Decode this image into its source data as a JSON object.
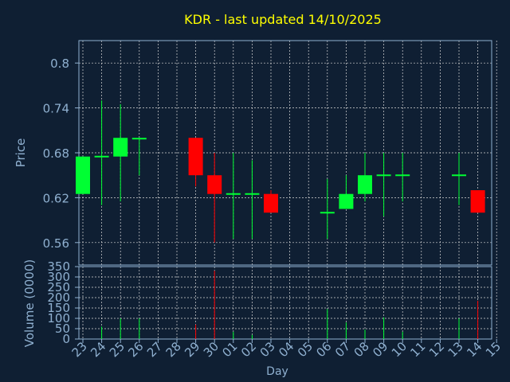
{
  "colors": {
    "background": "#0f1f33",
    "axis": "#8fb0d0",
    "title": "#ffff00",
    "grid": "#d8d8d8",
    "up": "#00ff33",
    "down": "#ff0000"
  },
  "chart_data": {
    "type": "candlestick",
    "title": "KDR - last updated 14/10/2025",
    "xlabel": "Day",
    "days": [
      "23",
      "24",
      "25",
      "26",
      "27",
      "28",
      "29",
      "30",
      "01",
      "02",
      "03",
      "04",
      "05",
      "06",
      "07",
      "08",
      "09",
      "10",
      "11",
      "12",
      "13",
      "14",
      "15"
    ],
    "price": {
      "ylabel": "Price",
      "ylim": [
        0.53,
        0.83
      ],
      "ticks": [
        "0.56",
        "0.62",
        "0.68",
        "0.74",
        "0.8"
      ],
      "candles": [
        {
          "day": "23",
          "open": 0.625,
          "close": 0.675,
          "high": 0.675,
          "low": 0.625
        },
        {
          "day": "24",
          "open": 0.674,
          "close": 0.676,
          "high": 0.75,
          "low": 0.61
        },
        {
          "day": "25",
          "open": 0.675,
          "close": 0.7,
          "high": 0.745,
          "low": 0.615
        },
        {
          "day": "26",
          "open": 0.699,
          "close": 0.7,
          "high": 0.7,
          "low": 0.65
        },
        {
          "day": "29",
          "open": 0.7,
          "close": 0.65,
          "high": 0.7,
          "low": 0.635
        },
        {
          "day": "30",
          "open": 0.65,
          "close": 0.625,
          "high": 0.68,
          "low": 0.56
        },
        {
          "day": "01",
          "open": 0.624,
          "close": 0.626,
          "high": 0.68,
          "low": 0.565
        },
        {
          "day": "02",
          "open": 0.624,
          "close": 0.626,
          "high": 0.67,
          "low": 0.565
        },
        {
          "day": "03",
          "open": 0.625,
          "close": 0.6,
          "high": 0.63,
          "low": 0.6
        },
        {
          "day": "06",
          "open": 0.599,
          "close": 0.601,
          "high": 0.645,
          "low": 0.565
        },
        {
          "day": "07",
          "open": 0.605,
          "close": 0.625,
          "high": 0.65,
          "low": 0.605
        },
        {
          "day": "08",
          "open": 0.625,
          "close": 0.65,
          "high": 0.68,
          "low": 0.615
        },
        {
          "day": "09",
          "open": 0.649,
          "close": 0.651,
          "high": 0.68,
          "low": 0.595
        },
        {
          "day": "10",
          "open": 0.649,
          "close": 0.651,
          "high": 0.68,
          "low": 0.615
        },
        {
          "day": "13",
          "open": 0.649,
          "close": 0.651,
          "high": 0.68,
          "low": 0.61
        },
        {
          "day": "14",
          "open": 0.63,
          "close": 0.6,
          "high": 0.63,
          "low": 0.6
        }
      ]
    },
    "volume": {
      "ylabel": "Volume (0000)",
      "ylim": [
        0,
        350
      ],
      "ticks": [
        "0",
        "50",
        "100",
        "150",
        "200",
        "250",
        "300",
        "350"
      ],
      "bars": [
        {
          "day": "24",
          "value": 60,
          "color": "up"
        },
        {
          "day": "25",
          "value": 100,
          "color": "up"
        },
        {
          "day": "26",
          "value": 100,
          "color": "up"
        },
        {
          "day": "29",
          "value": 70,
          "color": "down"
        },
        {
          "day": "30",
          "value": 330,
          "color": "down"
        },
        {
          "day": "01",
          "value": 35,
          "color": "up"
        },
        {
          "day": "02",
          "value": 20,
          "color": "up"
        },
        {
          "day": "06",
          "value": 145,
          "color": "up"
        },
        {
          "day": "07",
          "value": 80,
          "color": "up"
        },
        {
          "day": "08",
          "value": 45,
          "color": "up"
        },
        {
          "day": "09",
          "value": 105,
          "color": "up"
        },
        {
          "day": "10",
          "value": 35,
          "color": "up"
        },
        {
          "day": "13",
          "value": 100,
          "color": "up"
        },
        {
          "day": "14",
          "value": 185,
          "color": "down"
        }
      ]
    },
    "grid": true
  }
}
